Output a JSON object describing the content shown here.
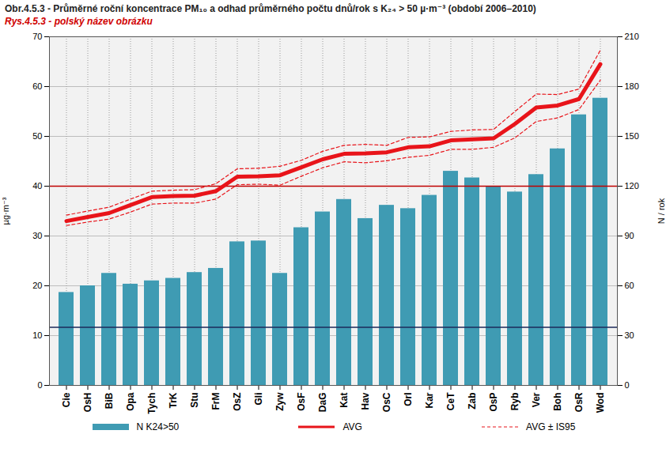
{
  "chart_data": {
    "type": "bar",
    "title": "Obr.4.5.3 - Průměrné roční koncentrace PM₁₀ a odhad průměrného počtu dnů/rok s K₂₄ > 50 µ·m⁻³ (období 2006–2010)",
    "subtitle": "Rys.4.5.3 - polský název obrázku",
    "y_label": "µg·m⁻³",
    "y2_label": "N / rok",
    "categories": [
      "Cie",
      "OsH",
      "BiB",
      "Opa",
      "Tych",
      "TrK",
      "Stu",
      "FrM",
      "OsZ",
      "Gli",
      "Zyw",
      "OsF",
      "DaG",
      "Kat",
      "Hav",
      "OsC",
      "Orl",
      "Kar",
      "CeT",
      "Zab",
      "OsP",
      "Ryb",
      "Ver",
      "Boh",
      "OsR",
      "Wod"
    ],
    "series": [
      {
        "name": "N K24>50",
        "type": "bar",
        "axis": "y2",
        "color": "#3f9bb3",
        "values": [
          56,
          60,
          67.5,
          61,
          63,
          64.5,
          68,
          70.5,
          86.5,
          87,
          67.5,
          95,
          104.5,
          112,
          100.5,
          108.5,
          106.5,
          114.5,
          129,
          125,
          120,
          116.5,
          127,
          142.5,
          163,
          173
        ]
      },
      {
        "name": "AVG",
        "type": "line",
        "color": "#e8141a",
        "line_style": "solid",
        "values": [
          33,
          33.8,
          34.6,
          36.2,
          37.8,
          38,
          38.1,
          39,
          41.9,
          42,
          42.2,
          43.8,
          45.4,
          46.5,
          46.6,
          46.8,
          47.8,
          48,
          49.2,
          49.4,
          49.6,
          52.5,
          55.8,
          56.2,
          57.5,
          64.5
        ]
      },
      {
        "name": "AVG ± IS95",
        "type": "line",
        "color": "#e8141a",
        "line_style": "dashed",
        "upper": [
          34.2,
          35,
          35.8,
          37.4,
          39,
          39.2,
          39.3,
          40.5,
          43.5,
          43.6,
          44,
          45.2,
          47,
          48.2,
          48.4,
          48.2,
          49.8,
          49.9,
          51,
          51.3,
          51.4,
          55,
          58.5,
          58.4,
          59.5,
          67.3
        ],
        "lower": [
          32.1,
          32.8,
          33.4,
          34.8,
          36.4,
          36.6,
          36.6,
          37.4,
          40.3,
          40.4,
          40.2,
          42,
          43.7,
          44.9,
          44.7,
          45.1,
          45.8,
          46.2,
          47.4,
          47.4,
          47.8,
          49.7,
          53,
          53.7,
          55.4,
          61.3
        ]
      }
    ],
    "limits": [
      {
        "value": 40,
        "axis": "y",
        "color": "#c00000"
      },
      {
        "value": 35,
        "axis": "y2",
        "color": "#1c2a5a"
      }
    ],
    "ylim": [
      0,
      70
    ],
    "yticks": [
      0,
      10,
      20,
      30,
      40,
      50,
      60,
      70
    ],
    "y2lim": [
      0,
      210
    ],
    "y2ticks": [
      0,
      30,
      60,
      90,
      120,
      150,
      180,
      210
    ],
    "grid": true,
    "legend": "bottom"
  }
}
